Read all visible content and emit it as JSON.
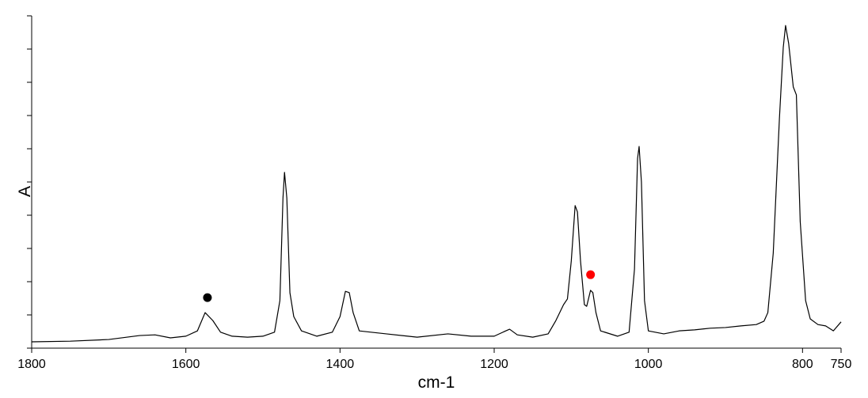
{
  "chart_data": {
    "type": "line",
    "x_label": "cm-1",
    "y_label": "A",
    "xlim": [
      1800,
      750
    ],
    "xticks": [
      1800,
      1600,
      1400,
      1200,
      1000,
      800,
      750
    ],
    "ylim": [
      0,
      1
    ],
    "yticks": [
      0,
      0.1,
      0.2,
      0.3,
      0.4,
      0.5,
      0.6,
      0.7,
      0.8,
      0.9,
      1
    ],
    "x": [
      1800,
      1750,
      1700,
      1660,
      1640,
      1620,
      1600,
      1585,
      1575,
      1565,
      1555,
      1540,
      1520,
      1500,
      1485,
      1478,
      1474,
      1472,
      1469,
      1465,
      1460,
      1450,
      1430,
      1410,
      1400,
      1393,
      1388,
      1383,
      1375,
      1360,
      1340,
      1300,
      1260,
      1230,
      1200,
      1185,
      1180,
      1170,
      1150,
      1130,
      1120,
      1110,
      1105,
      1100,
      1095,
      1092,
      1088,
      1083,
      1080,
      1075,
      1072,
      1068,
      1062,
      1040,
      1025,
      1018,
      1014,
      1012,
      1009,
      1005,
      1000,
      980,
      960,
      940,
      920,
      900,
      880,
      860,
      850,
      845,
      838,
      830,
      825,
      822,
      818,
      812,
      808,
      803,
      796,
      790,
      780,
      770,
      760,
      750
    ],
    "series": [
      {
        "color": "#000000",
        "values": [
          0.019,
          0.021,
          0.026,
          0.038,
          0.04,
          0.031,
          0.036,
          0.052,
          0.107,
          0.083,
          0.048,
          0.036,
          0.033,
          0.036,
          0.048,
          0.143,
          0.452,
          0.529,
          0.452,
          0.167,
          0.095,
          0.052,
          0.036,
          0.048,
          0.095,
          0.171,
          0.167,
          0.107,
          0.052,
          0.048,
          0.043,
          0.033,
          0.043,
          0.036,
          0.036,
          0.052,
          0.057,
          0.04,
          0.033,
          0.043,
          0.083,
          0.131,
          0.148,
          0.262,
          0.429,
          0.41,
          0.262,
          0.131,
          0.126,
          0.174,
          0.167,
          0.107,
          0.052,
          0.036,
          0.048,
          0.238,
          0.571,
          0.607,
          0.5,
          0.143,
          0.052,
          0.043,
          0.052,
          0.055,
          0.06,
          0.062,
          0.067,
          0.071,
          0.081,
          0.107,
          0.286,
          0.69,
          0.905,
          0.971,
          0.917,
          0.786,
          0.762,
          0.381,
          0.143,
          0.088,
          0.071,
          0.067,
          0.052,
          0.079
        ]
      }
    ],
    "points": [
      {
        "x": 1572,
        "y": 0.152,
        "color": "#000000"
      },
      {
        "x": 1075,
        "y": 0.221,
        "color": "#ff0000"
      }
    ]
  }
}
